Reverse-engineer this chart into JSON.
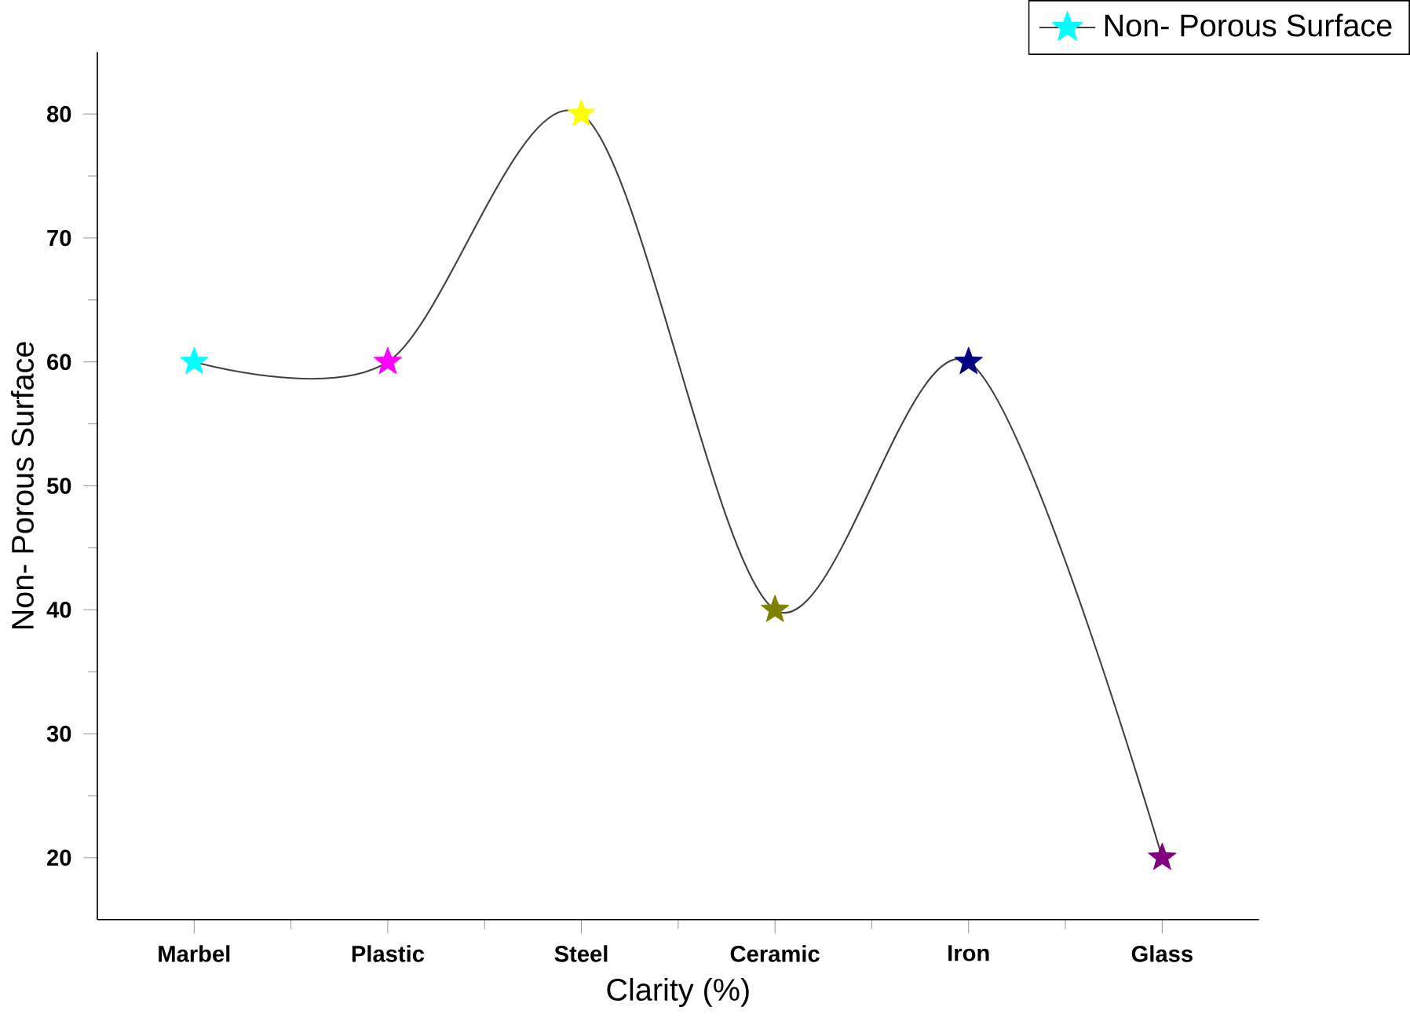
{
  "chart_data": {
    "type": "line",
    "xlabel": "Clarity (%)",
    "ylabel": "Non- Porous Surface",
    "categories": [
      "Marbel",
      "Plastic",
      "Steel",
      "Ceramic",
      "Iron",
      "Glass"
    ],
    "series": [
      {
        "name": "Non- Porous Surface",
        "color": "#404040",
        "values": [
          60,
          60,
          80,
          40,
          60,
          20
        ],
        "colors": [
          "#00ffff",
          "#ff00ff",
          "#ffff00",
          "#808000",
          "#000080",
          "#800080"
        ]
      }
    ],
    "ylim": [
      15,
      85
    ],
    "yticks": [
      20,
      30,
      40,
      50,
      60,
      70,
      80
    ],
    "marker": "star",
    "legend": "top right",
    "grid": false
  }
}
